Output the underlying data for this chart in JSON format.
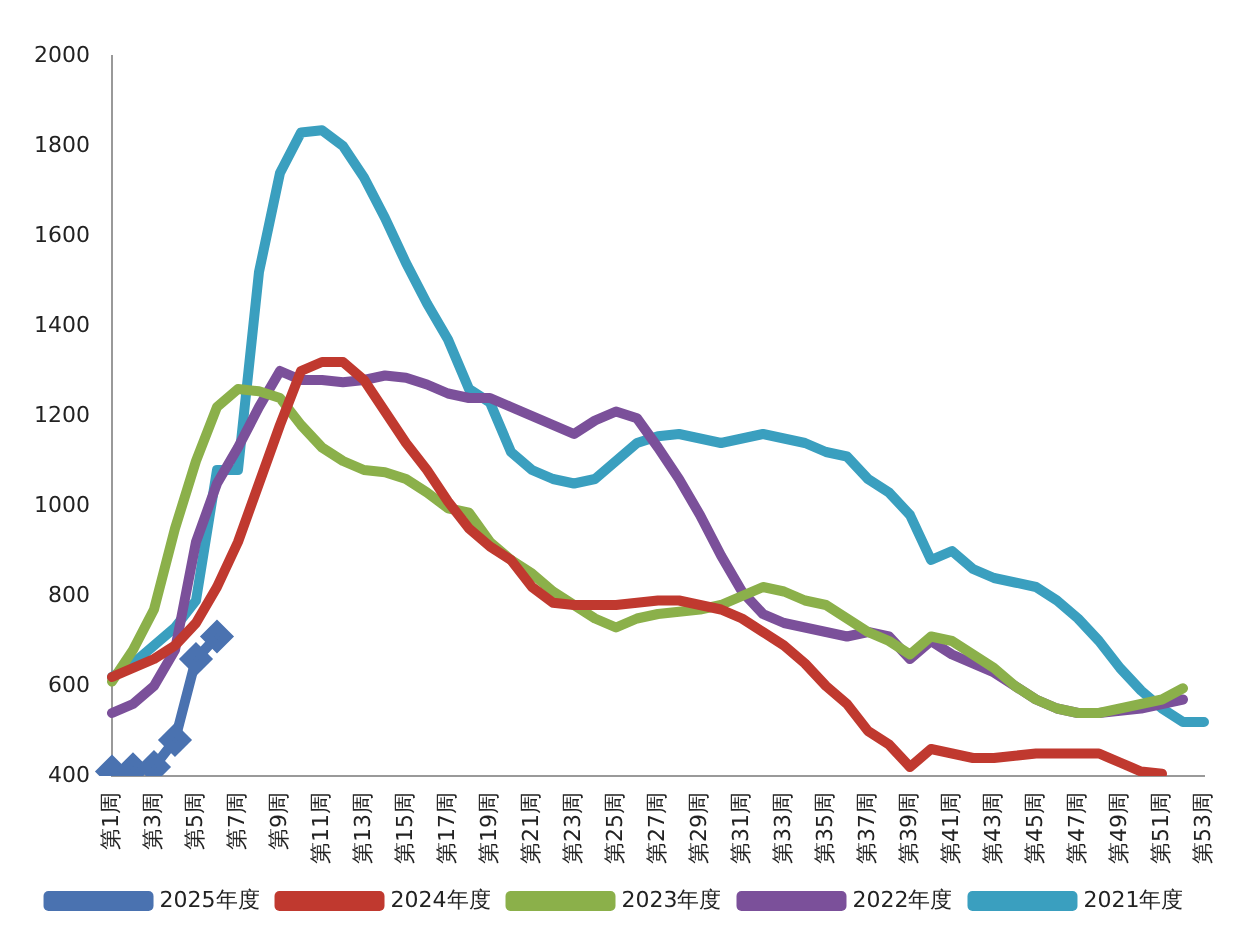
{
  "chart_data": {
    "type": "line",
    "categories": [
      "第1周",
      null,
      "第3周",
      null,
      "第5周",
      null,
      "第7周",
      null,
      "第9周",
      null,
      "第11周",
      null,
      "第13周",
      null,
      "第15周",
      null,
      "第17周",
      null,
      "第19周",
      null,
      "第21周",
      null,
      "第23周",
      null,
      "第25周",
      null,
      "第27周",
      null,
      "第29周",
      null,
      "第31周",
      null,
      "第33周",
      null,
      "第35周",
      null,
      "第37周",
      null,
      "第39周",
      null,
      "第41周",
      null,
      "第43周",
      null,
      "第45周",
      null,
      "第47周",
      null,
      "第49周",
      null,
      "第51周",
      null,
      "第53周"
    ],
    "series": [
      {
        "name": "2025年度",
        "color": "#4a72b0",
        "marker": "diamond",
        "values": [
          410,
          415,
          420,
          480,
          660,
          710,
          null,
          null,
          null,
          null,
          null,
          null,
          null,
          null,
          null,
          null,
          null,
          null,
          null,
          null,
          null,
          null,
          null,
          null,
          null,
          null,
          null,
          null,
          null,
          null,
          null,
          null,
          null,
          null,
          null,
          null,
          null,
          null,
          null,
          null,
          null,
          null,
          null,
          null,
          null,
          null,
          null,
          null,
          null,
          null,
          null,
          null,
          null
        ]
      },
      {
        "name": "2024年度",
        "color": "#c0392f",
        "marker": "none",
        "values": [
          620,
          640,
          660,
          690,
          740,
          820,
          920,
          1050,
          1180,
          1300,
          1320,
          1320,
          1280,
          1210,
          1140,
          1080,
          1010,
          950,
          910,
          880,
          820,
          785,
          780,
          780,
          780,
          785,
          790,
          790,
          780,
          770,
          750,
          720,
          690,
          650,
          600,
          560,
          500,
          470,
          420,
          460,
          450,
          440,
          440,
          445,
          450,
          450,
          450,
          450,
          430,
          410,
          405,
          null,
          null
        ]
      },
      {
        "name": "2023年度",
        "color": "#8bb04a",
        "marker": "none",
        "values": [
          610,
          680,
          770,
          950,
          1100,
          1220,
          1260,
          1255,
          1240,
          1180,
          1130,
          1100,
          1080,
          1075,
          1060,
          1030,
          995,
          985,
          920,
          880,
          850,
          810,
          780,
          750,
          730,
          750,
          760,
          765,
          770,
          780,
          800,
          820,
          810,
          790,
          780,
          750,
          720,
          700,
          670,
          710,
          700,
          670,
          640,
          600,
          570,
          550,
          540,
          540,
          550,
          560,
          570,
          595,
          null
        ]
      },
      {
        "name": "2022年度",
        "color": "#7b509a",
        "marker": "none",
        "values": [
          540,
          560,
          600,
          680,
          920,
          1050,
          1130,
          1220,
          1300,
          1280,
          1280,
          1275,
          1280,
          1290,
          1285,
          1270,
          1250,
          1240,
          1240,
          1220,
          1200,
          1180,
          1160,
          1190,
          1210,
          1195,
          1130,
          1060,
          980,
          890,
          810,
          760,
          740,
          730,
          720,
          710,
          720,
          710,
          660,
          700,
          670,
          650,
          630,
          600,
          570,
          550,
          540,
          540,
          545,
          550,
          560,
          570,
          null
        ]
      },
      {
        "name": "2021年度",
        "color": "#3a9fbf",
        "marker": "none",
        "values": [
          620,
          650,
          690,
          730,
          790,
          1080,
          1080,
          1520,
          1740,
          1830,
          1835,
          1800,
          1730,
          1640,
          1540,
          1450,
          1370,
          1260,
          1230,
          1120,
          1080,
          1060,
          1050,
          1060,
          1100,
          1140,
          1155,
          1160,
          1150,
          1140,
          1150,
          1160,
          1150,
          1140,
          1120,
          1110,
          1060,
          1030,
          980,
          880,
          900,
          860,
          840,
          830,
          820,
          790,
          750,
          700,
          640,
          590,
          550,
          520,
          520
        ]
      }
    ],
    "ylim": [
      400,
      2000
    ],
    "yticks": [
      400,
      600,
      800,
      1000,
      1200,
      1400,
      1600,
      1800,
      2000
    ],
    "grid": false,
    "legend": "bottom",
    "line_style": "solid"
  }
}
